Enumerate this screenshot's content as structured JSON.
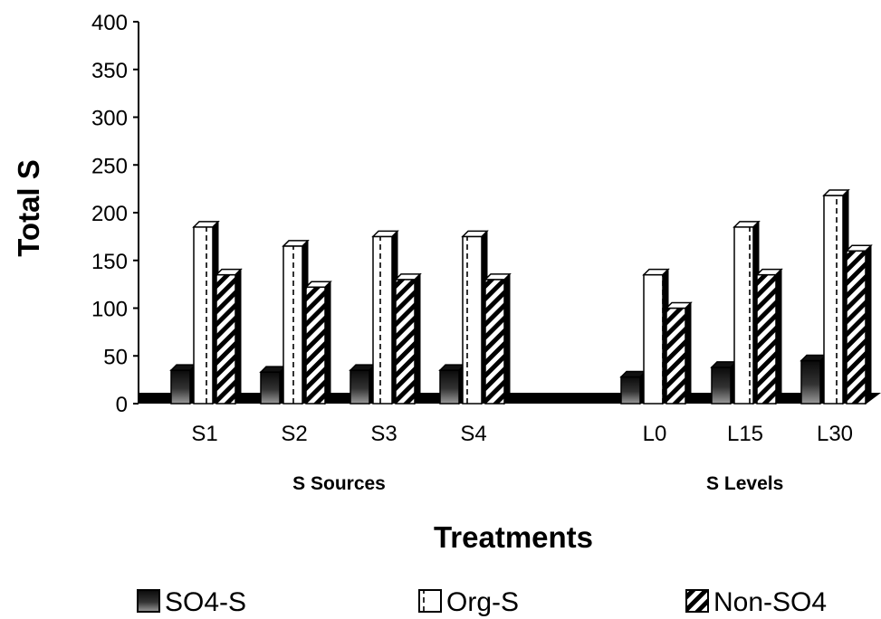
{
  "chart_data": {
    "type": "bar",
    "ylabel": "Total S",
    "xlabel": "Treatments",
    "ylim": [
      0,
      400
    ],
    "yticks": [
      0,
      50,
      100,
      150,
      200,
      250,
      300,
      350,
      400
    ],
    "categories": [
      "S1",
      "S2",
      "S3",
      "S4",
      "",
      "L0",
      "L15",
      "L30"
    ],
    "category_groups": [
      {
        "label": "S Sources",
        "categories": [
          "S1",
          "S2",
          "S3",
          "S4"
        ]
      },
      {
        "label": "S Levels",
        "categories": [
          "L0",
          "L15",
          "L30"
        ]
      }
    ],
    "series": [
      {
        "name": "SO4-S",
        "pattern": "solid-dark",
        "values": [
          35,
          33,
          35,
          35,
          null,
          28,
          38,
          45
        ]
      },
      {
        "name": "Org-S",
        "pattern": "vertical-stripes",
        "values": [
          185,
          165,
          175,
          175,
          null,
          135,
          185,
          218
        ]
      },
      {
        "name": "Non-SO4",
        "pattern": "diagonal-hatch",
        "values": [
          135,
          122,
          130,
          130,
          null,
          100,
          135,
          160
        ]
      }
    ],
    "grid": false,
    "legend_position": "bottom",
    "style": "3d-clustered-column"
  }
}
